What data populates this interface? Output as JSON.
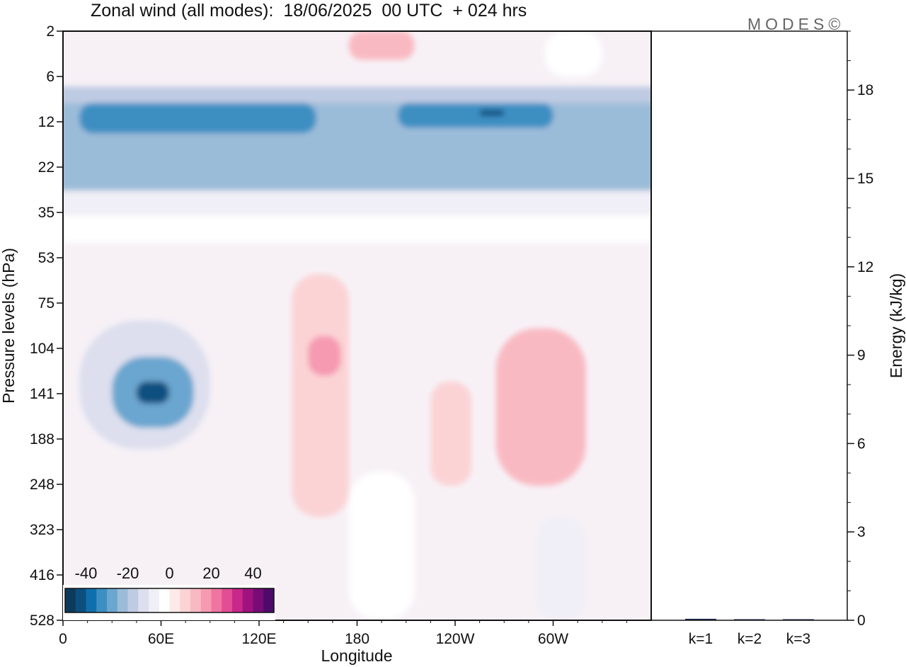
{
  "chart_data": [
    {
      "type": "heatmap",
      "title": "Zonal wind (all modes):  18/06/2025  00 UTC  + 024 hrs",
      "xlabel": "Longitude",
      "ylabel": "Pressure levels (hPa)",
      "x_ticks": [
        "0",
        "60E",
        "120E",
        "180",
        "120W",
        "60W"
      ],
      "x_tick_lon": [
        0,
        60,
        120,
        180,
        240,
        300
      ],
      "xlim": [
        0,
        360
      ],
      "y_ticks": [
        2,
        6,
        12,
        22,
        35,
        53,
        75,
        104,
        141,
        188,
        248,
        323,
        416,
        528
      ],
      "colorbar": {
        "ticks": [
          "-40",
          "-20",
          "0",
          "20",
          "40"
        ],
        "tick_values": [
          -40,
          -20,
          0,
          20,
          40
        ],
        "range": [
          -50,
          50
        ],
        "step": 5,
        "colors": [
          "#0b3a5b",
          "#0c4f7f",
          "#0f6fad",
          "#3d8fc2",
          "#6ba6cf",
          "#9bbcd9",
          "#bfcbe3",
          "#dddfee",
          "#f0eef6",
          "#ffffff",
          "#fde9e9",
          "#fbd3d5",
          "#f9b9c2",
          "#f59ab0",
          "#ef75a0",
          "#e24d94",
          "#c7288a",
          "#a0127f",
          "#780b76",
          "#4e0a6a"
        ]
      },
      "regions": [
        {
          "lon_range": [
            0,
            360
          ],
          "levels": [
            7,
            9
          ],
          "value": -20
        },
        {
          "lon_range": [
            0,
            360
          ],
          "levels": [
            9,
            28
          ],
          "value": -22
        },
        {
          "lon_range": [
            10,
            155
          ],
          "levels": [
            9,
            14
          ],
          "value": -32
        },
        {
          "lon_range": [
            205,
            300
          ],
          "levels": [
            9,
            13
          ],
          "value": -34
        },
        {
          "lon_range": [
            255,
            270
          ],
          "levels": [
            10,
            11
          ],
          "value": -42
        },
        {
          "lon_range": [
            0,
            360
          ],
          "levels": [
            28,
            36
          ],
          "value": -10
        },
        {
          "lon_range": [
            0,
            360
          ],
          "levels": [
            36,
            46
          ],
          "value": -3
        },
        {
          "lon_range": [
            10,
            90
          ],
          "levels": [
            85,
            200
          ],
          "value": -15
        },
        {
          "lon_range": [
            30,
            80
          ],
          "levels": [
            110,
            175
          ],
          "value": -28
        },
        {
          "lon_range": [
            45,
            65
          ],
          "levels": [
            130,
            150
          ],
          "value": -42
        },
        {
          "lon_range": [
            140,
            175
          ],
          "levels": [
            60,
            300
          ],
          "value": 6
        },
        {
          "lon_range": [
            150,
            170
          ],
          "levels": [
            95,
            125
          ],
          "value": 17
        },
        {
          "lon_range": [
            225,
            250
          ],
          "levels": [
            130,
            250
          ],
          "value": 9
        },
        {
          "lon_range": [
            265,
            320
          ],
          "levels": [
            90,
            250
          ],
          "value": 10
        },
        {
          "lon_range": [
            175,
            215
          ],
          "levels": [
            2,
            4
          ],
          "value": 12
        },
        {
          "lon_range": [
            295,
            330
          ],
          "levels": [
            2,
            6
          ],
          "value": -5
        },
        {
          "lon_range": [
            175,
            215
          ],
          "levels": [
            230,
            528
          ],
          "value": -4
        },
        {
          "lon_range": [
            290,
            320
          ],
          "levels": [
            300,
            528
          ],
          "value": -8
        }
      ],
      "annotations": [
        "MODES©"
      ]
    },
    {
      "type": "bar",
      "categories": [
        "k=1",
        "k=2",
        "k=3"
      ],
      "values": [
        0.05,
        0.03,
        0.01
      ],
      "ylabel": "Energy (kJ/kg)",
      "y_ticks": [
        0,
        3,
        6,
        9,
        12,
        15,
        18
      ],
      "ylim": [
        0,
        20
      ]
    }
  ]
}
